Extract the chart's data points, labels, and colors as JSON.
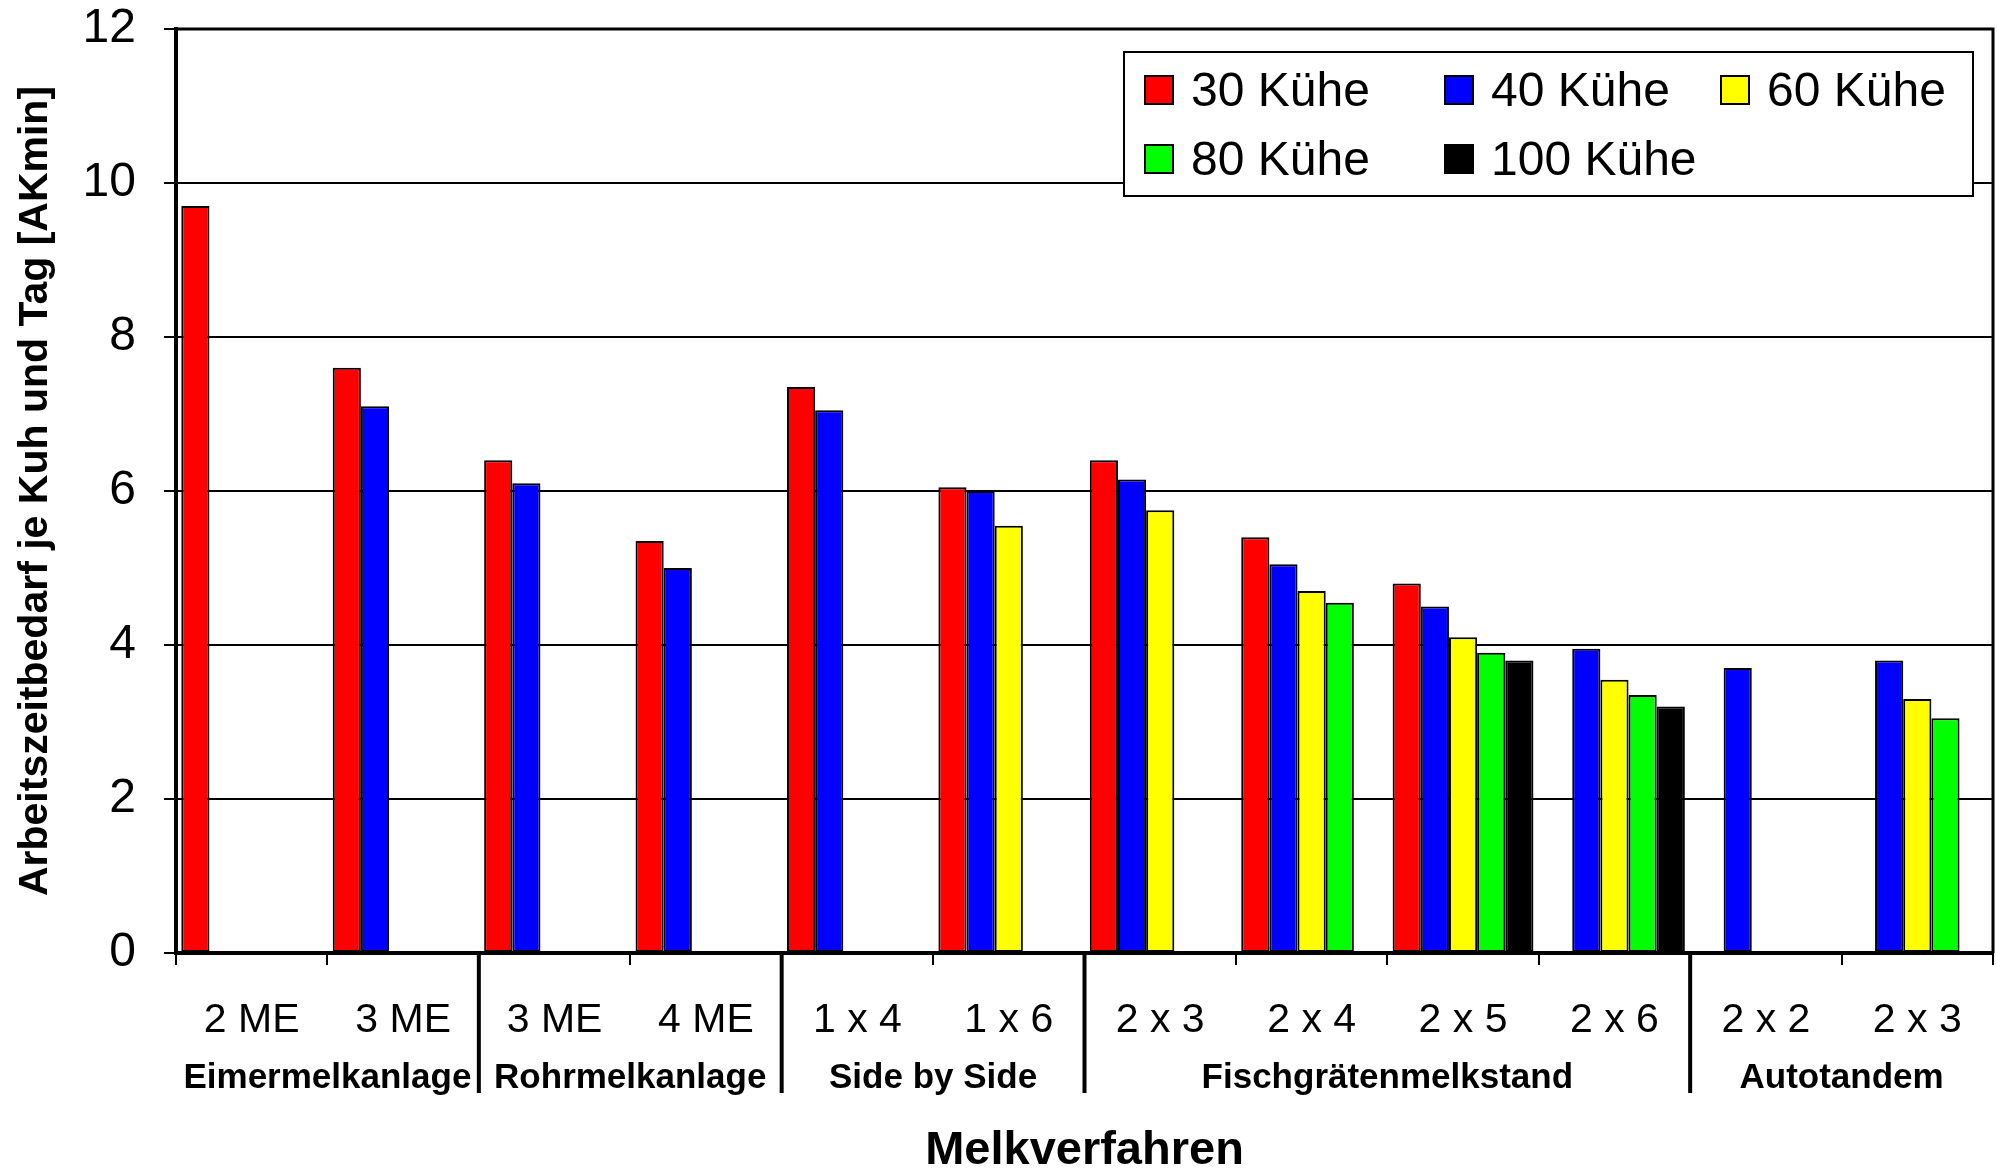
{
  "chart_data": {
    "type": "bar",
    "xlabel": "Melkverfahren",
    "ylabel": "Arbeitszeitbedarf je Kuh und Tag [AKmin]",
    "categories": [
      "2 ME",
      "3 ME",
      "3 ME",
      "4 ME",
      "1 x 4",
      "1 x 6",
      "2 x 3",
      "2 x 4",
      "2 x 5",
      "2 x 6",
      "2 x 2",
      "2 x 3"
    ],
    "series": [
      {
        "name": "30 Kühe",
        "color": "#ff0000",
        "values": [
          9.7,
          7.6,
          6.4,
          5.35,
          7.35,
          6.05,
          6.4,
          5.4,
          4.8,
          null,
          null,
          null
        ]
      },
      {
        "name": "40 Kühe",
        "color": "#0000ff",
        "values": [
          null,
          7.1,
          6.1,
          5.0,
          7.05,
          6.0,
          6.15,
          5.05,
          4.5,
          3.95,
          3.7,
          3.8
        ]
      },
      {
        "name": "60 Kühe",
        "color": "#ffff00",
        "values": [
          null,
          null,
          null,
          null,
          null,
          5.55,
          5.75,
          4.7,
          4.1,
          3.55,
          null,
          3.3
        ]
      },
      {
        "name": "80 Kühe",
        "color": "#00ff00",
        "values": [
          null,
          null,
          null,
          null,
          null,
          null,
          null,
          4.55,
          3.9,
          3.35,
          null,
          3.05
        ]
      },
      {
        "name": "100 Kühe",
        "color": "#000000",
        "values": [
          null,
          null,
          null,
          null,
          null,
          null,
          null,
          null,
          3.8,
          3.2,
          null,
          null
        ]
      }
    ],
    "ylim": [
      0,
      12
    ],
    "yticks": [
      0,
      2,
      4,
      6,
      8,
      10,
      12
    ],
    "grid": "y",
    "legend": "top right",
    "annotations": [
      "Eimermelkanlage",
      "Rohrmelkanlage",
      "Side by Side",
      "Fischgrätenmelkstand",
      "Autotandem"
    ]
  }
}
